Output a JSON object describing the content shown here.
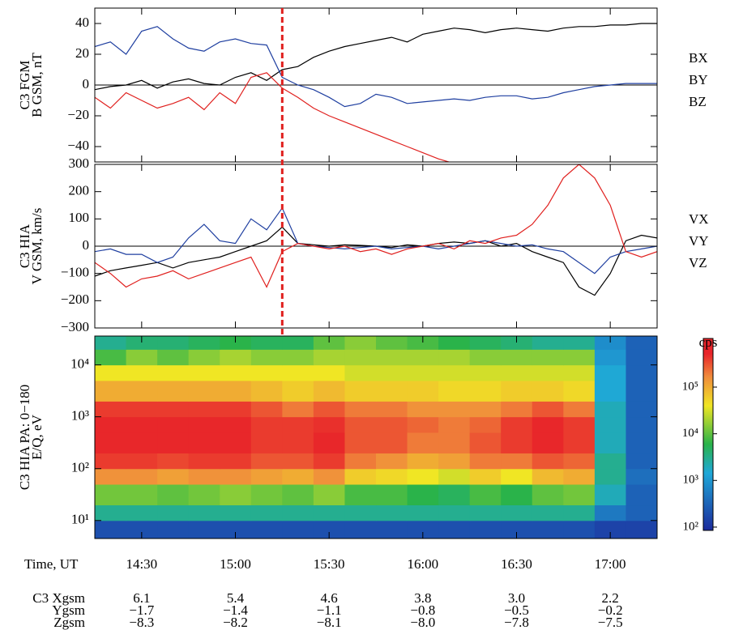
{
  "event_time": "15:15",
  "xlabel": "Time, UT",
  "xlim": [
    "14:15",
    "17:15"
  ],
  "xticks": [
    "14:30",
    "15:00",
    "15:30",
    "16:00",
    "16:30",
    "17:00"
  ],
  "ephemeris": [
    {
      "label": "C3 Xgsm",
      "values": [
        "6.1",
        "5.4",
        "4.6",
        "3.8",
        "3.0",
        "2.2"
      ]
    },
    {
      "label": "Ygsm",
      "values": [
        "−1.7",
        "−1.4",
        "−1.1",
        "−0.8",
        "−0.5",
        "−0.2"
      ]
    },
    {
      "label": "Zgsm",
      "values": [
        "−8.3",
        "−8.2",
        "−8.1",
        "−8.0",
        "−7.8",
        "−7.5"
      ]
    }
  ],
  "chart_data": [
    {
      "type": "line",
      "ylabel": [
        "C3 FGM",
        "B GSM, nT"
      ],
      "zero_line": true,
      "ylim": [
        -50,
        50
      ],
      "yticks": [
        {
          "value": -40,
          "label": "−40"
        },
        {
          "value": -20,
          "label": "−20"
        },
        0,
        20,
        40
      ],
      "x": [
        "14:15",
        "14:20",
        "14:25",
        "14:30",
        "14:35",
        "14:40",
        "14:45",
        "14:50",
        "14:55",
        "15:00",
        "15:05",
        "15:10",
        "15:15",
        "15:20",
        "15:25",
        "15:30",
        "15:35",
        "15:40",
        "15:45",
        "15:50",
        "15:55",
        "16:00",
        "16:05",
        "16:10",
        "16:15",
        "16:20",
        "16:25",
        "16:30",
        "16:35",
        "16:40",
        "16:45",
        "16:50",
        "16:55",
        "17:00",
        "17:05",
        "17:10",
        "17:15"
      ],
      "series": [
        {
          "name": "BX",
          "color": "#000000",
          "values": [
            -3,
            -1,
            0,
            3,
            -2,
            2,
            4,
            1,
            0,
            5,
            8,
            3,
            10,
            12,
            18,
            22,
            25,
            27,
            29,
            31,
            28,
            33,
            35,
            37,
            36,
            34,
            36,
            37,
            36,
            35,
            37,
            38,
            38,
            39,
            39,
            40,
            40
          ]
        },
        {
          "name": "BY",
          "color": "#1f3fa0",
          "values": [
            25,
            28,
            20,
            35,
            38,
            30,
            24,
            22,
            28,
            30,
            27,
            26,
            5,
            0,
            -3,
            -8,
            -14,
            -12,
            -6,
            -8,
            -12,
            -11,
            -10,
            -9,
            -10,
            -8,
            -7,
            -7,
            -9,
            -8,
            -5,
            -3,
            -1,
            0,
            1,
            1,
            1
          ]
        },
        {
          "name": "BZ",
          "color": "#e0201e",
          "values": [
            -8,
            -15,
            -5,
            -10,
            -15,
            -12,
            -8,
            -16,
            -5,
            -12,
            5,
            8,
            -2,
            -8,
            -15,
            -20,
            -24,
            -28,
            -32,
            -36,
            -40,
            -44,
            -48,
            -51,
            null,
            null,
            null,
            null,
            null,
            null,
            null,
            null,
            null,
            null,
            null,
            null,
            null
          ]
        }
      ]
    },
    {
      "type": "line",
      "ylabel": [
        "C3 HIA",
        "V GSM, km/s"
      ],
      "zero_line": true,
      "ylim": [
        -300,
        300
      ],
      "yticks": [
        {
          "value": -300,
          "label": "−300"
        },
        {
          "value": -200,
          "label": "−200"
        },
        {
          "value": -100,
          "label": "−100"
        },
        0,
        100,
        200,
        300
      ],
      "x": [
        "14:15",
        "14:20",
        "14:25",
        "14:30",
        "14:35",
        "14:40",
        "14:45",
        "14:50",
        "14:55",
        "15:00",
        "15:05",
        "15:10",
        "15:15",
        "15:20",
        "15:25",
        "15:30",
        "15:35",
        "15:40",
        "15:45",
        "15:50",
        "15:55",
        "16:00",
        "16:05",
        "16:10",
        "16:15",
        "16:20",
        "16:25",
        "16:30",
        "16:35",
        "16:40",
        "16:45",
        "16:50",
        "16:55",
        "17:00",
        "17:05",
        "17:10",
        "17:15"
      ],
      "series": [
        {
          "name": "VX",
          "color": "#000000",
          "values": [
            -110,
            -90,
            -80,
            -70,
            -60,
            -80,
            -60,
            -50,
            -40,
            -20,
            0,
            20,
            70,
            10,
            5,
            0,
            5,
            3,
            0,
            -5,
            5,
            0,
            10,
            15,
            10,
            20,
            0,
            10,
            -20,
            -40,
            -60,
            -150,
            -180,
            -100,
            20,
            40,
            30
          ]
        },
        {
          "name": "VY",
          "color": "#1f3fa0",
          "values": [
            -20,
            -10,
            -30,
            -30,
            -60,
            -40,
            30,
            80,
            20,
            10,
            100,
            60,
            140,
            10,
            0,
            -5,
            -10,
            -5,
            0,
            -10,
            -5,
            0,
            -10,
            0,
            10,
            20,
            10,
            0,
            5,
            -10,
            -20,
            -60,
            -100,
            -40,
            -20,
            -10,
            0
          ]
        },
        {
          "name": "VZ",
          "color": "#e0201e",
          "values": [
            -60,
            -100,
            -150,
            -120,
            -110,
            -90,
            -120,
            -100,
            -80,
            -60,
            -40,
            -150,
            -20,
            10,
            0,
            -10,
            0,
            -20,
            -10,
            -30,
            -10,
            0,
            10,
            -10,
            20,
            10,
            30,
            40,
            80,
            150,
            250,
            300,
            250,
            150,
            -20,
            -40,
            -20
          ]
        }
      ]
    },
    {
      "type": "spectrogram",
      "ylabel": [
        "C3 HIA PA:  0−180",
        "E/Q, eV"
      ],
      "log_y": true,
      "ylim": [
        4.5,
        36000
      ],
      "yticks": [
        {
          "value": 10,
          "label": "10¹"
        },
        {
          "value": 100,
          "label": "10²"
        },
        {
          "value": 1000,
          "label": "10³"
        },
        {
          "value": 10000,
          "label": "10⁴"
        }
      ],
      "time_bins": [
        "14:15",
        "14:25",
        "14:35",
        "14:45",
        "14:55",
        "15:05",
        "15:15",
        "15:25",
        "15:35",
        "15:45",
        "15:55",
        "16:05",
        "16:15",
        "16:25",
        "16:35",
        "16:45",
        "16:55",
        "17:05",
        "17:15"
      ],
      "energy_bins": [
        4.5,
        10,
        20,
        50,
        100,
        200,
        500,
        1000,
        2000,
        5000,
        10000,
        20000,
        36000
      ],
      "colorbar": {
        "label": "cps",
        "log": true,
        "clim": [
          85,
          1100000
        ],
        "ticks": [
          {
            "value": 100,
            "label": "10²"
          },
          {
            "value": 1000,
            "label": "10³"
          },
          {
            "value": 10000,
            "label": "10⁴"
          },
          {
            "value": 100000,
            "label": "10⁵"
          }
        ]
      },
      "values": [
        [
          200,
          200,
          200,
          200,
          200,
          200,
          200,
          200,
          200,
          200,
          200,
          200,
          200,
          200,
          200,
          200,
          150,
          150
        ],
        [
          3000,
          3000,
          3000,
          3000,
          3000,
          3000,
          3000,
          3000,
          3000,
          3000,
          3000,
          3000,
          3000,
          3000,
          3000,
          3000,
          500,
          300
        ],
        [
          12000,
          12000,
          10000,
          12000,
          15000,
          12000,
          10000,
          15000,
          8000,
          8000,
          6000,
          5000,
          8000,
          6000,
          10000,
          12000,
          2000,
          300
        ],
        [
          150000,
          150000,
          120000,
          150000,
          150000,
          120000,
          100000,
          150000,
          60000,
          50000,
          40000,
          30000,
          60000,
          40000,
          80000,
          100000,
          3000,
          400
        ],
        [
          400000,
          400000,
          350000,
          400000,
          400000,
          300000,
          300000,
          400000,
          200000,
          150000,
          100000,
          120000,
          200000,
          200000,
          300000,
          250000,
          3000,
          300
        ],
        [
          500000,
          500000,
          500000,
          500000,
          500000,
          400000,
          400000,
          500000,
          300000,
          300000,
          200000,
          200000,
          300000,
          400000,
          500000,
          400000,
          2000,
          300
        ],
        [
          500000,
          500000,
          500000,
          500000,
          500000,
          400000,
          400000,
          450000,
          300000,
          300000,
          250000,
          200000,
          250000,
          400000,
          500000,
          400000,
          2000,
          300
        ],
        [
          400000,
          400000,
          400000,
          400000,
          400000,
          300000,
          200000,
          300000,
          200000,
          200000,
          150000,
          150000,
          150000,
          200000,
          300000,
          200000,
          2000,
          300
        ],
        [
          100000,
          100000,
          100000,
          100000,
          100000,
          80000,
          60000,
          80000,
          60000,
          60000,
          60000,
          50000,
          50000,
          60000,
          60000,
          50000,
          1500,
          300
        ],
        [
          40000,
          40000,
          40000,
          40000,
          40000,
          40000,
          40000,
          40000,
          30000,
          30000,
          30000,
          30000,
          30000,
          30000,
          30000,
          30000,
          1500,
          300
        ],
        [
          8000,
          15000,
          10000,
          15000,
          20000,
          15000,
          15000,
          20000,
          20000,
          20000,
          20000,
          20000,
          15000,
          15000,
          15000,
          15000,
          1000,
          300
        ],
        [
          3000,
          4000,
          4000,
          5000,
          6000,
          5000,
          5000,
          10000,
          15000,
          10000,
          8000,
          6000,
          5000,
          4000,
          3000,
          3000,
          800,
          300
        ]
      ]
    }
  ]
}
